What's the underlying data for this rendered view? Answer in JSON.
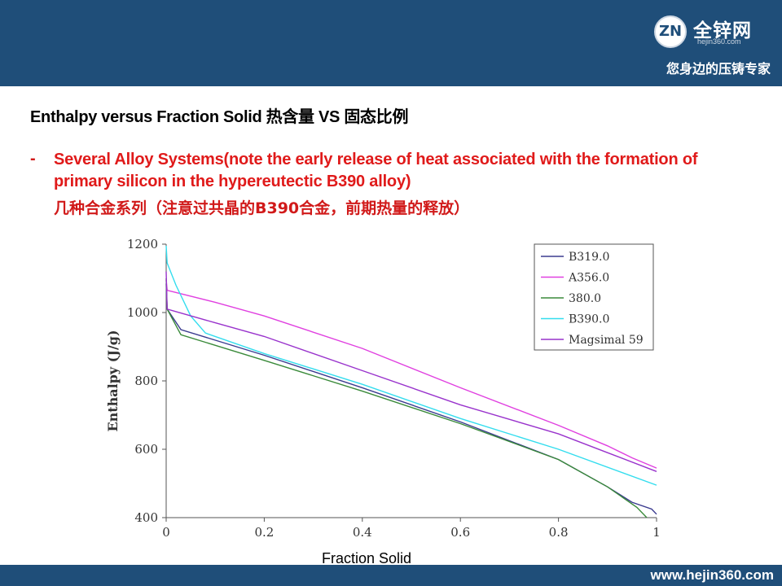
{
  "header": {
    "logo_mark": "ZN",
    "brand": "全锌网",
    "brand_url": "hejin360.com",
    "slogan": "您身边的压铸专家"
  },
  "title": "Enthalpy versus Fraction Solid 热含量 VS 固态比例",
  "bullet": {
    "dash": "-",
    "text": "Several Alloy Systems(note the early release of heat associated with the formation of primary silicon in the hypereutectic B390 alloy)",
    "text_cn": "几种合金系列（注意过共晶的B390合金，前期热量的释放）"
  },
  "chart_data": {
    "type": "line",
    "xlabel": "Fraction Solid",
    "ylabel": "Enthalpy (J/g)",
    "xlim": [
      0,
      1
    ],
    "ylim": [
      400,
      1200
    ],
    "x_ticks": [
      "0",
      "0.2",
      "0.4",
      "0.6",
      "0.8",
      "1"
    ],
    "y_ticks": [
      "400",
      "600",
      "800",
      "1000",
      "1200"
    ],
    "grid": false,
    "legend_position": "top-right",
    "series": [
      {
        "name": "B319.0",
        "color": "#3b3b8f",
        "x": [
          0,
          0.002,
          0.03,
          0.2,
          0.4,
          0.6,
          0.8,
          0.9,
          0.95,
          0.99,
          1.0
        ],
        "y": [
          1085,
          1010,
          950,
          875,
          780,
          680,
          570,
          490,
          445,
          425,
          410
        ]
      },
      {
        "name": "A356.0",
        "color": "#e040e0",
        "x": [
          0,
          0.002,
          0.1,
          0.2,
          0.4,
          0.6,
          0.8,
          0.9,
          0.95,
          1.0
        ],
        "y": [
          1095,
          1065,
          1030,
          990,
          895,
          780,
          670,
          610,
          575,
          545
        ]
      },
      {
        "name": "380.0",
        "color": "#3a8a3a",
        "x": [
          0,
          0.002,
          0.03,
          0.2,
          0.4,
          0.6,
          0.8,
          0.9,
          0.96,
          0.98
        ],
        "y": [
          1100,
          1010,
          935,
          860,
          770,
          675,
          570,
          490,
          430,
          400
        ]
      },
      {
        "name": "B390.0",
        "color": "#33ddee",
        "x": [
          0,
          0.002,
          0.02,
          0.05,
          0.08,
          0.2,
          0.4,
          0.6,
          0.8,
          1.0
        ],
        "y": [
          1195,
          1145,
          1080,
          990,
          940,
          880,
          790,
          690,
          600,
          495
        ]
      },
      {
        "name": "Magsimal 59",
        "color": "#9933cc",
        "x": [
          0,
          0.002,
          0.1,
          0.2,
          0.4,
          0.6,
          0.8,
          0.9,
          1.0
        ],
        "y": [
          1120,
          1010,
          970,
          930,
          830,
          730,
          645,
          590,
          535
        ]
      }
    ]
  },
  "footer": {
    "url": "www.hejin360.com"
  }
}
